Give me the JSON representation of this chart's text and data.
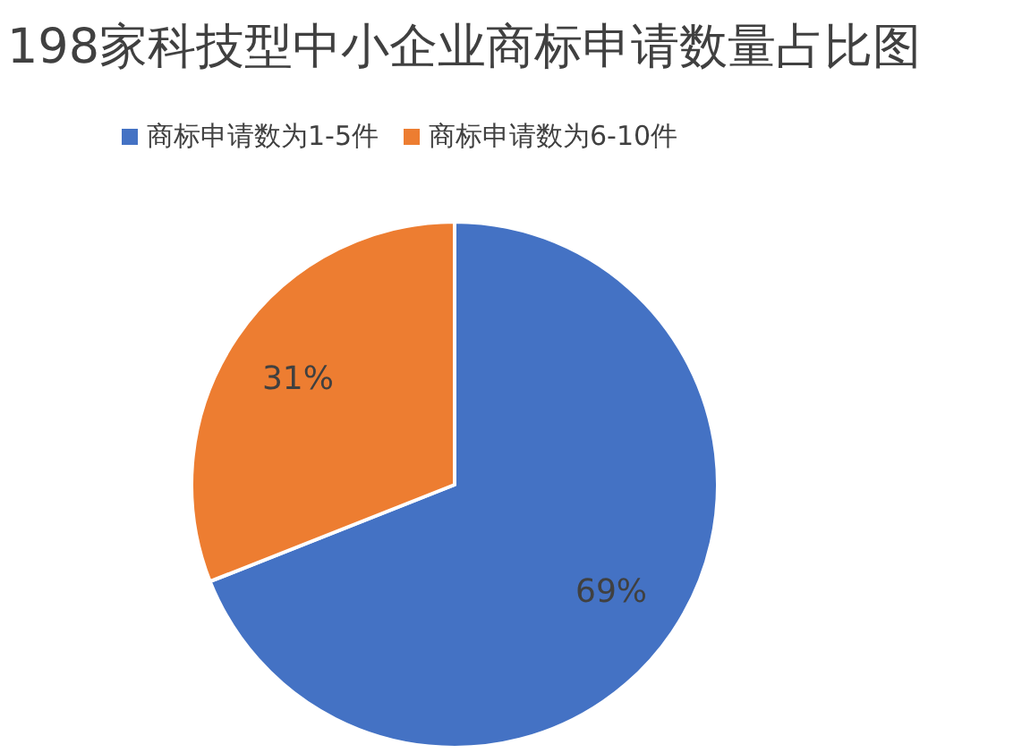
{
  "chart_data": {
    "type": "pie",
    "title": "198家科技型中小企业商标申请数量占比图",
    "categories": [
      "商标申请数为1-5件",
      "商标申请数为6-10件"
    ],
    "values": [
      69,
      31
    ],
    "colors": [
      "#4472c4",
      "#ed7d31"
    ],
    "value_labels": [
      "69%",
      "31%"
    ],
    "legend": "top"
  }
}
